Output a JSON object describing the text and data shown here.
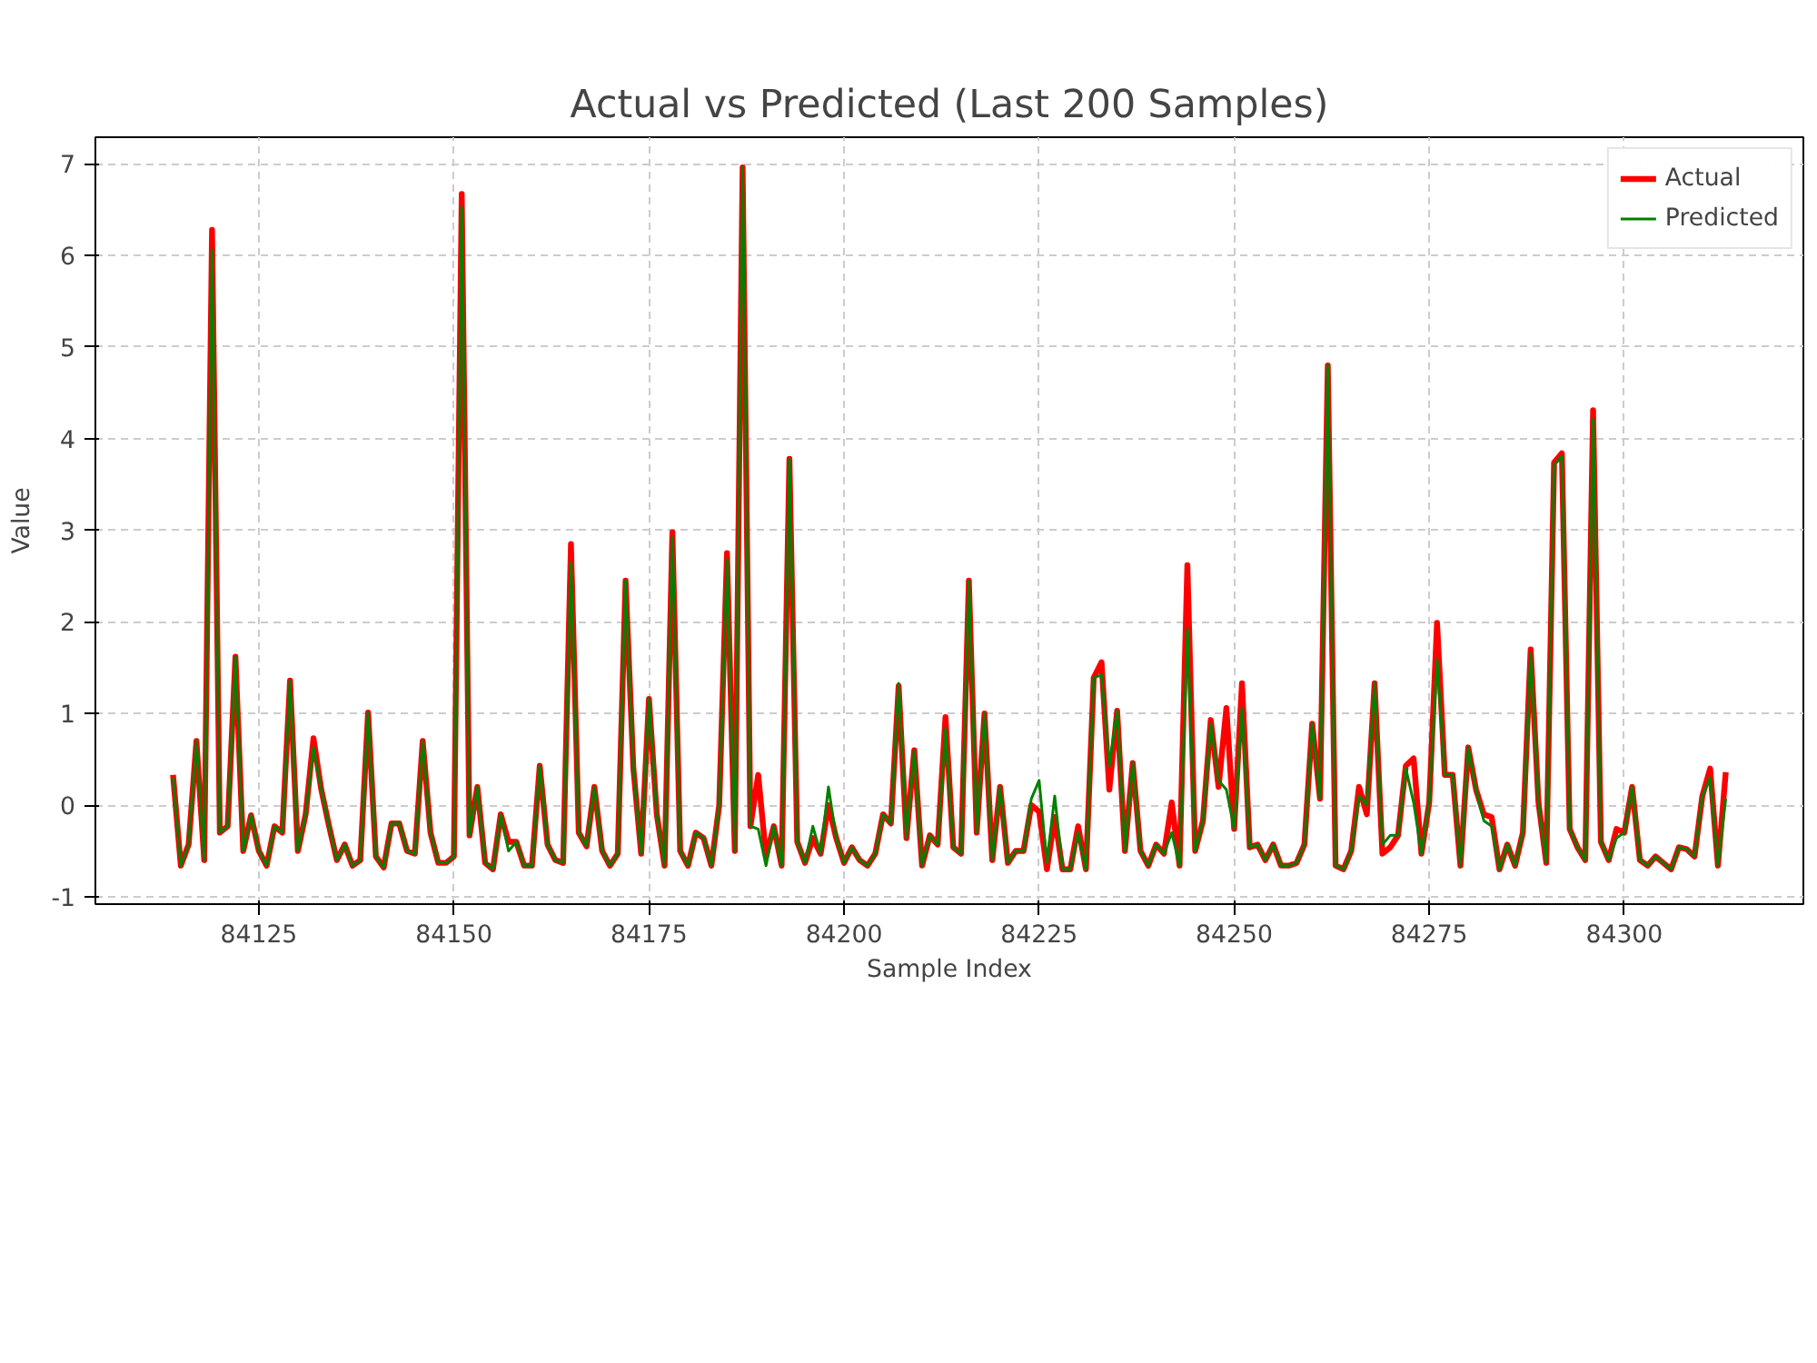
{
  "chart_data": {
    "type": "line",
    "title": "Actual vs Predicted (Last 200 Samples)",
    "xlabel": "Sample Index",
    "ylabel": "Value",
    "x": [
      84114,
      84115,
      84116,
      84117,
      84118,
      84119,
      84120,
      84121,
      84122,
      84123,
      84124,
      84125,
      84126,
      84127,
      84128,
      84129,
      84130,
      84131,
      84132,
      84133,
      84134,
      84135,
      84136,
      84137,
      84138,
      84139,
      84140,
      84141,
      84142,
      84143,
      84144,
      84145,
      84146,
      84147,
      84148,
      84149,
      84150,
      84151,
      84152,
      84153,
      84154,
      84155,
      84156,
      84157,
      84158,
      84159,
      84160,
      84161,
      84162,
      84163,
      84164,
      84165,
      84166,
      84167,
      84168,
      84169,
      84170,
      84171,
      84172,
      84173,
      84174,
      84175,
      84176,
      84177,
      84178,
      84179,
      84180,
      84181,
      84182,
      84183,
      84184,
      84185,
      84186,
      84187,
      84188,
      84189,
      84190,
      84191,
      84192,
      84193,
      84194,
      84195,
      84196,
      84197,
      84198,
      84199,
      84200,
      84201,
      84202,
      84203,
      84204,
      84205,
      84206,
      84207,
      84208,
      84209,
      84210,
      84211,
      84212,
      84213,
      84214,
      84215,
      84216,
      84217,
      84218,
      84219,
      84220,
      84221,
      84222,
      84223,
      84224,
      84225,
      84226,
      84227,
      84228,
      84229,
      84230,
      84231,
      84232,
      84233,
      84234,
      84235,
      84236,
      84237,
      84238,
      84239,
      84240,
      84241,
      84242,
      84243,
      84244,
      84245,
      84246,
      84247,
      84248,
      84249,
      84250,
      84251,
      84252,
      84253,
      84254,
      84255,
      84256,
      84257,
      84258,
      84259,
      84260,
      84261,
      84262,
      84263,
      84264,
      84265,
      84266,
      84267,
      84268,
      84269,
      84270,
      84271,
      84272,
      84273,
      84274,
      84275,
      84276,
      84277,
      84278,
      84279,
      84280,
      84281,
      84282,
      84283,
      84284,
      84285,
      84286,
      84287,
      84288,
      84289,
      84290,
      84291,
      84292,
      84293,
      84294,
      84295,
      84296,
      84297,
      84298,
      84299,
      84300,
      84301,
      84302,
      84303,
      84304,
      84305,
      84306,
      84307,
      84308,
      84309,
      84310,
      84311,
      84312,
      84313
    ],
    "series": [
      {
        "name": "Actual",
        "color": "#ff0000",
        "values": [
          0.33,
          -0.66,
          -0.43,
          0.7,
          -0.6,
          6.28,
          -0.3,
          -0.23,
          1.62,
          -0.5,
          -0.11,
          -0.5,
          -0.66,
          -0.23,
          -0.3,
          1.36,
          -0.5,
          -0.1,
          0.73,
          0.17,
          -0.23,
          -0.6,
          -0.43,
          -0.66,
          -0.6,
          1.01,
          -0.56,
          -0.68,
          -0.2,
          -0.2,
          -0.5,
          -0.53,
          0.7,
          -0.3,
          -0.63,
          -0.63,
          -0.56,
          6.67,
          -0.33,
          0.2,
          -0.63,
          -0.7,
          -0.1,
          -0.4,
          -0.4,
          -0.66,
          -0.66,
          0.43,
          -0.43,
          -0.6,
          -0.63,
          2.85,
          -0.3,
          -0.45,
          0.2,
          -0.5,
          -0.66,
          -0.53,
          2.45,
          0.4,
          -0.53,
          1.16,
          -0.1,
          -0.66,
          2.98,
          -0.5,
          -0.66,
          -0.3,
          -0.36,
          -0.66,
          0,
          2.75,
          -0.5,
          6.96,
          -0.23,
          0.33,
          -0.56,
          -0.23,
          -0.66,
          3.78,
          -0.4,
          -0.63,
          -0.36,
          -0.53,
          0,
          -0.36,
          -0.63,
          -0.46,
          -0.6,
          -0.66,
          -0.53,
          -0.1,
          -0.2,
          1.3,
          -0.36,
          0.6,
          -0.66,
          -0.33,
          -0.43,
          0.96,
          -0.46,
          -0.53,
          2.45,
          -0.3,
          1.0,
          -0.6,
          0.2,
          -0.63,
          -0.5,
          -0.5,
          0,
          -0.07,
          -0.7,
          -0.13,
          -0.7,
          -0.7,
          -0.23,
          -0.7,
          1.39,
          1.56,
          0.17,
          1.03,
          -0.5,
          0.46,
          -0.5,
          -0.66,
          -0.43,
          -0.53,
          0.03,
          -0.66,
          2.62,
          -0.5,
          -0.17,
          0.93,
          0.2,
          1.06,
          -0.26,
          1.33,
          -0.46,
          -0.43,
          -0.6,
          -0.43,
          -0.66,
          -0.66,
          -0.63,
          -0.43,
          0.89,
          0.07,
          4.8,
          -0.66,
          -0.7,
          -0.5,
          0.2,
          -0.1,
          1.33,
          -0.53,
          -0.46,
          -0.33,
          0.43,
          0.51,
          -0.53,
          0.03,
          1.99,
          0.33,
          0.33,
          -0.66,
          0.63,
          0.17,
          -0.1,
          -0.13,
          -0.7,
          -0.43,
          -0.66,
          -0.3,
          1.7,
          0.03,
          -0.63,
          3.74,
          3.84,
          -0.26,
          -0.46,
          -0.6,
          4.31,
          -0.4,
          -0.6,
          -0.26,
          -0.3,
          0.2,
          -0.6,
          -0.66,
          -0.56,
          -0.63,
          -0.7,
          -0.46,
          -0.48,
          -0.56,
          0.1,
          0.4,
          -0.66,
          0.36
        ]
      },
      {
        "name": "Predicted",
        "color": "#008000",
        "values": [
          0.3,
          -0.66,
          -0.43,
          0.7,
          -0.6,
          6.06,
          -0.3,
          -0.23,
          1.62,
          -0.5,
          -0.11,
          -0.5,
          -0.66,
          -0.23,
          -0.3,
          1.36,
          -0.5,
          -0.1,
          0.63,
          0.17,
          -0.23,
          -0.6,
          -0.43,
          -0.66,
          -0.6,
          1.01,
          -0.56,
          -0.68,
          -0.2,
          -0.2,
          -0.5,
          -0.53,
          0.7,
          -0.3,
          -0.63,
          -0.63,
          -0.56,
          6.53,
          -0.33,
          0.2,
          -0.63,
          -0.7,
          -0.1,
          -0.5,
          -0.4,
          -0.66,
          -0.66,
          0.43,
          -0.43,
          -0.6,
          -0.63,
          2.65,
          -0.3,
          -0.45,
          0.2,
          -0.5,
          -0.66,
          -0.53,
          2.45,
          0.4,
          -0.53,
          1.16,
          -0.1,
          -0.66,
          2.92,
          -0.5,
          -0.66,
          -0.3,
          -0.36,
          -0.66,
          0,
          2.68,
          -0.5,
          6.96,
          -0.23,
          -0.26,
          -0.66,
          -0.23,
          -0.66,
          3.78,
          -0.4,
          -0.63,
          -0.23,
          -0.53,
          0.2,
          -0.36,
          -0.63,
          -0.46,
          -0.6,
          -0.66,
          -0.53,
          -0.1,
          -0.2,
          1.33,
          -0.36,
          0.6,
          -0.66,
          -0.33,
          -0.43,
          0.83,
          -0.46,
          -0.53,
          2.45,
          -0.3,
          1.0,
          -0.6,
          0.2,
          -0.63,
          -0.5,
          -0.5,
          0.07,
          0.27,
          -0.63,
          0.1,
          -0.7,
          -0.7,
          -0.3,
          -0.7,
          1.39,
          1.42,
          0.43,
          1.03,
          -0.5,
          0.46,
          -0.5,
          -0.66,
          -0.43,
          -0.53,
          -0.3,
          -0.66,
          1.92,
          -0.5,
          -0.17,
          0.89,
          0.27,
          0.17,
          -0.26,
          1.06,
          -0.46,
          -0.43,
          -0.6,
          -0.43,
          -0.66,
          -0.66,
          -0.63,
          -0.43,
          0.89,
          0.07,
          4.8,
          -0.66,
          -0.7,
          -0.5,
          0.1,
          0,
          1.33,
          -0.43,
          -0.33,
          -0.33,
          0.4,
          0.03,
          -0.53,
          0.03,
          1.59,
          0.33,
          0.33,
          -0.66,
          0.63,
          0.17,
          -0.17,
          -0.23,
          -0.7,
          -0.43,
          -0.66,
          -0.3,
          1.66,
          0.03,
          -0.63,
          3.71,
          3.81,
          -0.26,
          -0.46,
          -0.6,
          4.21,
          -0.4,
          -0.6,
          -0.36,
          -0.3,
          0.2,
          -0.6,
          -0.66,
          -0.56,
          -0.63,
          -0.7,
          -0.46,
          -0.48,
          -0.56,
          0.1,
          0.3,
          -0.66,
          0.07
        ]
      }
    ],
    "xlim": [
      84104.05,
      84322.95
    ],
    "xticks": [
      84125,
      84150,
      84175,
      84200,
      84225,
      84250,
      84275,
      84300
    ],
    "ylim": [
      -1.08,
      7.29
    ],
    "yticks": [
      -1,
      0,
      1,
      2,
      3,
      4,
      5,
      6,
      7
    ],
    "grid": true,
    "legend": "top right"
  }
}
